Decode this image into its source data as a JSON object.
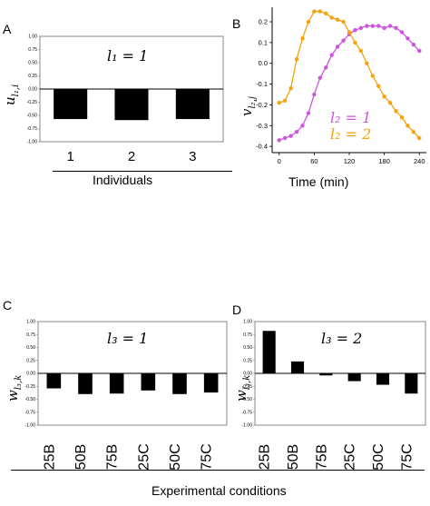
{
  "panel_labels": {
    "a": "A",
    "b": "B",
    "c": "C",
    "d": "D"
  },
  "ylabels": {
    "a": "u",
    "a_sub": "l₁,i",
    "b": "v",
    "b_sub": "l₂,j",
    "c": "w",
    "c_sub": "l₃,k",
    "d": "w",
    "d_sub": "l₃,k"
  },
  "annotations": {
    "a": "l₁ = 1",
    "b1": "l₂ = 1",
    "b2": "l₂ = 2",
    "c": "l₃ = 1",
    "d": "l₃ = 2"
  },
  "xlabels": {
    "a": "Individuals",
    "b": "Time (min)",
    "cd": "Experimental conditions"
  },
  "colors": {
    "purple": "#cc55dd",
    "orange": "#f5a20c",
    "bar": "#000000"
  },
  "chart_data": [
    {
      "panel": "A",
      "type": "bar",
      "categories": [
        "1",
        "2",
        "3"
      ],
      "values": [
        -0.57,
        -0.59,
        -0.57
      ],
      "ylim": [
        -1.0,
        1.0
      ],
      "yticks": [
        "1.00",
        "0.75",
        "0.50",
        "0.25",
        "0.00",
        "-0.25",
        "-0.50",
        "-0.75",
        "-1.00"
      ],
      "xlabel": "Individuals"
    },
    {
      "panel": "B",
      "type": "line",
      "x": [
        0,
        10,
        20,
        30,
        40,
        50,
        60,
        70,
        80,
        90,
        100,
        110,
        120,
        130,
        140,
        150,
        160,
        170,
        180,
        190,
        200,
        210,
        220,
        230,
        240
      ],
      "series": [
        {
          "name": "l₂ = 1",
          "color": "#cc55dd",
          "values": [
            -0.37,
            -0.36,
            -0.35,
            -0.33,
            -0.3,
            -0.24,
            -0.15,
            -0.07,
            -0.02,
            0.04,
            0.08,
            0.11,
            0.14,
            0.16,
            0.17,
            0.18,
            0.18,
            0.18,
            0.17,
            0.18,
            0.17,
            0.15,
            0.12,
            0.09,
            0.06
          ]
        },
        {
          "name": "l₂ = 2",
          "color": "#f5a20c",
          "values": [
            -0.19,
            -0.18,
            -0.12,
            0.02,
            0.12,
            0.2,
            0.25,
            0.25,
            0.24,
            0.22,
            0.21,
            0.2,
            0.15,
            0.1,
            0.06,
            0.0,
            -0.06,
            -0.11,
            -0.16,
            -0.19,
            -0.23,
            -0.26,
            -0.3,
            -0.33,
            -0.36
          ]
        }
      ],
      "xticks": [
        0,
        60,
        120,
        180,
        240
      ],
      "yticks": [
        "0.2",
        "0.1",
        "0.0",
        "-0.1",
        "-0.2",
        "-0.3",
        "-0.4"
      ],
      "ylim": [
        -0.43,
        0.27
      ],
      "xlim": [
        -12,
        252
      ],
      "xlabel": "Time (min)"
    },
    {
      "panel": "C",
      "type": "bar",
      "categories": [
        "25B",
        "50B",
        "75B",
        "25C",
        "50C",
        "75C"
      ],
      "values": [
        -0.29,
        -0.4,
        -0.39,
        -0.33,
        -0.4,
        -0.37
      ],
      "ylim": [
        -1.0,
        1.0
      ],
      "yticks": [
        "1.00",
        "0.75",
        "0.50",
        "0.25",
        "0.00",
        "-0.25",
        "-0.50",
        "-0.75",
        "-1.00"
      ]
    },
    {
      "panel": "D",
      "type": "bar",
      "categories": [
        "25B",
        "50B",
        "75B",
        "25C",
        "50C",
        "75C"
      ],
      "values": [
        0.82,
        0.23,
        -0.04,
        -0.15,
        -0.22,
        -0.39
      ],
      "ylim": [
        -1.0,
        1.0
      ],
      "yticks": [
        "1.00",
        "0.75",
        "0.50",
        "0.25",
        "0.00",
        "-0.25",
        "-0.50",
        "-0.75",
        "-1.00"
      ]
    }
  ]
}
